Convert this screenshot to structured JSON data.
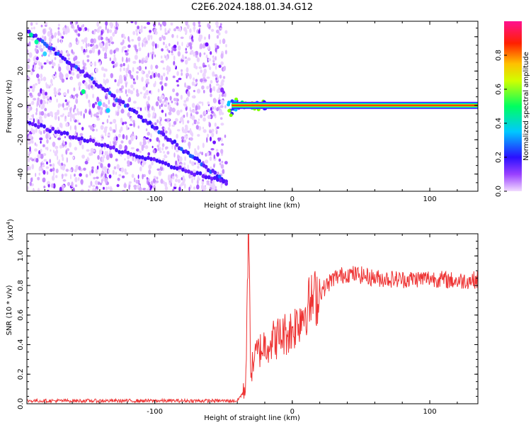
{
  "title": "C2E6.2024.188.01.34.G12",
  "chart_data": [
    {
      "type": "heatmap",
      "xlabel": "Height of straight line (km)",
      "ylabel": "Frequency (Hz)",
      "xlim": [
        -193,
        135
      ],
      "ylim": [
        -50,
        49
      ],
      "xticks": [
        -100,
        0,
        100
      ],
      "yticks": [
        -40,
        -20,
        0,
        20,
        40
      ],
      "colorbar": {
        "label": "Normalized spectral amplitude",
        "range": [
          0,
          1
        ],
        "ticks": [
          "0.0",
          "0.2",
          "0.4",
          "0.6",
          "0.8"
        ],
        "colors": [
          "#f2dcff",
          "#7a00ff",
          "#2020ff",
          "#00d8ff",
          "#00ff40",
          "#ffff00",
          "#ff8000",
          "#ff0000",
          "#ff1090"
        ]
      },
      "features": {
        "noise_region_x": [
          -193,
          -48
        ],
        "main_trace": [
          [
            -193,
            44
          ],
          [
            -48,
            -45
          ]
        ],
        "secondary_trace": [
          [
            -193,
            -10
          ],
          [
            -48,
            -45
          ]
        ],
        "carrier_onset_x": -48,
        "carrier_frequency": 0
      }
    },
    {
      "type": "line",
      "xlabel": "Height of straight line (km)",
      "ylabel": "SNR (10 * v/v)",
      "scale_label": "(x10",
      "scale_exponent": "4",
      "xlim": [
        -193,
        135
      ],
      "ylim": [
        0,
        1.15
      ],
      "xticks": [
        -100,
        0,
        100
      ],
      "yticks": [
        "0.0",
        "0.2",
        "0.4",
        "0.6",
        "0.8",
        "1.0"
      ],
      "line_color": "#ee3333",
      "series": [
        {
          "x": [
            -193,
            -150,
            -100,
            -60,
            -40,
            -34,
            -32,
            -30,
            -28,
            -25,
            -20,
            -10,
            0,
            10,
            20,
            30,
            40,
            50,
            60,
            80,
            100,
            120,
            135
          ],
          "values": [
            0.02,
            0.02,
            0.02,
            0.02,
            0.02,
            0.1,
            1.15,
            0.2,
            0.3,
            0.35,
            0.4,
            0.45,
            0.5,
            0.65,
            0.75,
            0.85,
            0.88,
            0.87,
            0.85,
            0.84,
            0.85,
            0.83,
            0.84
          ]
        }
      ]
    }
  ]
}
